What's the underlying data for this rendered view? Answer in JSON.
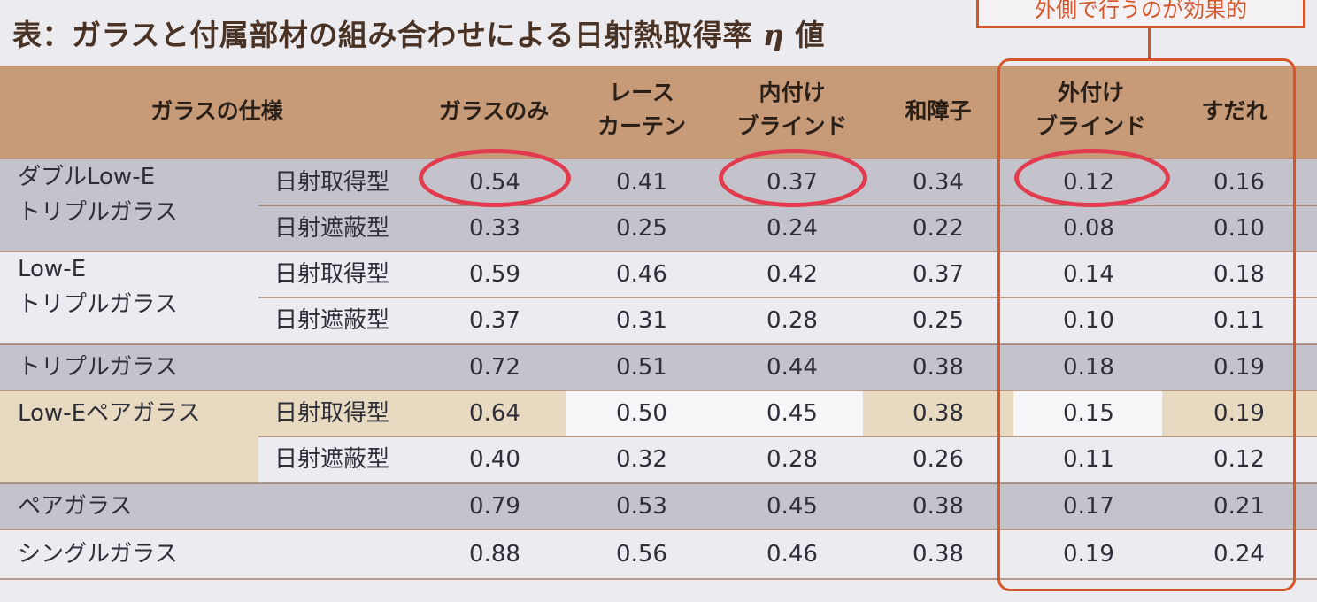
{
  "title": {
    "text": "表：ガラスと付属部材の組み合わせによる日射熱取得率",
    "eta": "η",
    "suffix": "値"
  },
  "callout": {
    "text": "外側で行うのが効果的"
  },
  "header": {
    "spec": "ガラスの仕様",
    "col1": "ガラスのみ",
    "col2a": "レース",
    "col2b": "カーテン",
    "col3a": "内付け",
    "col3b": "ブラインド",
    "col4": "和障子",
    "col5a": "外付け",
    "col5b": "ブラインド",
    "col6": "すだれ"
  },
  "rows": [
    {
      "label1": "ダブルLow-E",
      "label2": "トリプルガラス",
      "sub": "日射取得型",
      "v": [
        "0.54",
        "0.41",
        "0.37",
        "0.34",
        "0.12",
        "0.16"
      ]
    },
    {
      "label1": "",
      "label2": "",
      "sub": "日射遮蔽型",
      "v": [
        "0.33",
        "0.25",
        "0.24",
        "0.22",
        "0.08",
        "0.10"
      ]
    },
    {
      "label1": "Low-E",
      "label2": "トリプルガラス",
      "sub": "日射取得型",
      "v": [
        "0.59",
        "0.46",
        "0.42",
        "0.37",
        "0.14",
        "0.18"
      ]
    },
    {
      "label1": "",
      "label2": "",
      "sub": "日射遮蔽型",
      "v": [
        "0.37",
        "0.31",
        "0.28",
        "0.25",
        "0.10",
        "0.11"
      ]
    },
    {
      "label1": "トリプルガラス",
      "label2": "",
      "sub": "",
      "v": [
        "0.72",
        "0.51",
        "0.44",
        "0.38",
        "0.18",
        "0.19"
      ]
    },
    {
      "label1": "Low-Eペアガラス",
      "label2": "",
      "sub": "日射取得型",
      "v": [
        "0.64",
        "0.50",
        "0.45",
        "0.38",
        "0.15",
        "0.19"
      ]
    },
    {
      "label1": "",
      "label2": "",
      "sub": "日射遮蔽型",
      "v": [
        "0.40",
        "0.32",
        "0.28",
        "0.26",
        "0.11",
        "0.12"
      ]
    },
    {
      "label1": "ペアガラス",
      "label2": "",
      "sub": "",
      "v": [
        "0.79",
        "0.53",
        "0.45",
        "0.38",
        "0.17",
        "0.21"
      ]
    },
    {
      "label1": "シングルガラス",
      "label2": "",
      "sub": "",
      "v": [
        "0.88",
        "0.56",
        "0.46",
        "0.38",
        "0.19",
        "0.24"
      ]
    }
  ],
  "colors": {
    "accent": "#d6562a",
    "circle": "#e23b4d",
    "header": "#c79a78",
    "gray_row": "#c4c3cb",
    "beige": "#e7dac1"
  }
}
